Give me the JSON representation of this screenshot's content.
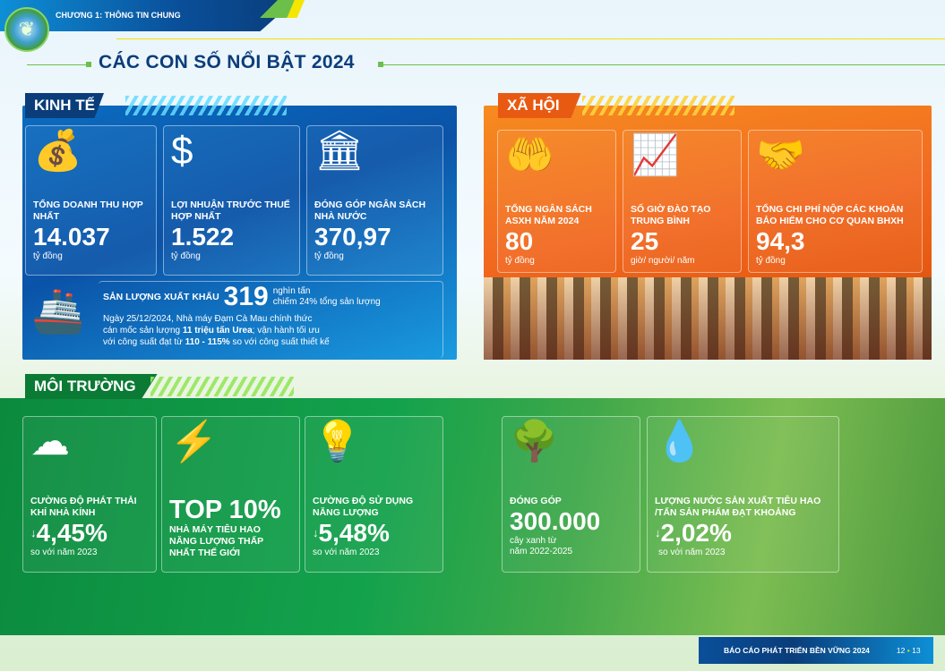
{
  "header": {
    "chapter": "CHƯƠNG 1: THÔNG TIN CHUNG",
    "title": "CÁC CON SỐ NỔI BẬT 2024"
  },
  "economy": {
    "label": "KINH TẾ",
    "cards": [
      {
        "icon": "money-bag-icon",
        "title": "TỔNG DOANH THU HỢP NHẤT",
        "value": "14.037",
        "unit": "tỷ đồng"
      },
      {
        "icon": "hand-dollar-icon",
        "title": "LỢI NHUẬN TRƯỚC THUẾ HỢP NHẤT",
        "value": "1.522",
        "unit": "tỷ đồng"
      },
      {
        "icon": "bank-icon",
        "title": "ĐÓNG GÓP NGÂN SÁCH NHÀ NƯỚC",
        "value": "370,97",
        "unit": "tỷ đồng"
      }
    ],
    "export": {
      "icon": "ship-icon",
      "title": "SẢN LƯỢNG XUẤT KHẨU",
      "value": "319",
      "unit": "nghìn tấn",
      "share": "chiếm 24% tổng sản lượng",
      "desc1": "Ngày 25/12/2024, Nhà máy Đạm Cà Mau chính thức",
      "desc2a": "cán mốc sản lượng ",
      "desc2b": "11 triệu tấn Urea",
      "desc2c": "; vận hành tối ưu",
      "desc3a": "với công suất đạt từ ",
      "desc3b": "110 - 115%",
      "desc3c": " so với công suất thiết kế"
    }
  },
  "social": {
    "label": "XÃ HỘI",
    "cards": [
      {
        "icon": "hands-heart-icon",
        "title": "TỔNG NGÂN SÁCH ASXH NĂM 2024",
        "value": "80",
        "unit": "tỷ đồng"
      },
      {
        "icon": "training-icon",
        "title": "SỐ GIỜ ĐÀO TẠO TRUNG BÌNH",
        "value": "25",
        "unit": "giờ/ người/ năm"
      },
      {
        "icon": "hands-together-heart-icon",
        "title": "TỔNG CHI PHÍ NỘP CÁC KHOẢN BẢO HIỂM CHO CƠ QUAN BHXH",
        "value": "94,3",
        "unit": "tỷ đồng"
      }
    ]
  },
  "environment": {
    "label": "MÔI TRƯỜNG",
    "cards": [
      {
        "icon": "co2-cloud-icon",
        "title": "CƯỜNG ĐỘ PHÁT THẢI KHÍ NHÀ KÍNH",
        "value": "4,45%",
        "unit": "so với năm 2023"
      },
      {
        "icon": "hands-energy-icon",
        "title": "TOP 10%",
        "unit": "NHÀ MÁY TIÊU HAO NĂNG LƯỢNG THẤP NHẤT THẾ GIỚI"
      },
      {
        "icon": "bulb-energy-icon",
        "title": "CƯỜNG ĐỘ SỬ DỤNG NĂNG LƯỢNG",
        "value": "5,48%",
        "unit": "so với năm 2023"
      },
      {
        "icon": "trees-icon",
        "title": "ĐÓNG GÓP",
        "value": "300.000",
        "unit1": "cây xanh từ",
        "unit2": "năm 2022-2025"
      },
      {
        "icon": "water-drops-icon",
        "title": "LƯỢNG NƯỚC SẢN XUẤT TIÊU HAO /TẤN SẢN PHẨM ĐẠT KHOẢNG",
        "value": "2,02%",
        "unit": "so với năm 2023"
      }
    ]
  },
  "footer": {
    "report": "BÁO CÁO PHÁT TRIỂN BỀN VỮNG 2024",
    "page_left": "12",
    "page_right": "13"
  },
  "colors": {
    "economy": "#0a53a8",
    "social": "#f26a21",
    "environment": "#13a24c",
    "title": "#0b3d7a"
  }
}
